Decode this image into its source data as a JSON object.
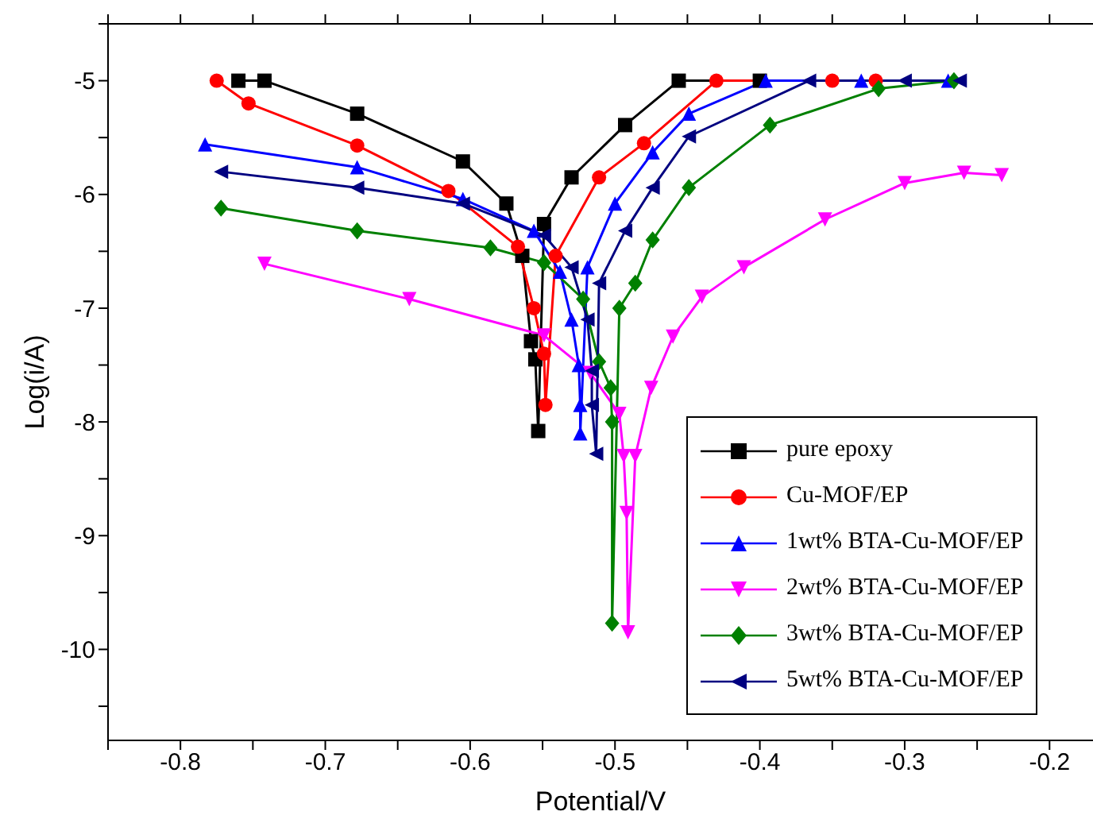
{
  "chart_data": {
    "type": "line",
    "xlabel": "Potential/V",
    "ylabel": "Log(i/A)",
    "xlim": [
      -0.85,
      -0.17
    ],
    "ylim": [
      -10.8,
      -4.5
    ],
    "xticks": [
      {
        "value": -0.85,
        "label": null
      },
      -0.8,
      {
        "value": -0.75,
        "label": null
      },
      -0.7,
      {
        "value": -0.65,
        "label": null
      },
      -0.6,
      {
        "value": -0.55,
        "label": null
      },
      -0.5,
      {
        "value": -0.45,
        "label": null
      },
      -0.4,
      {
        "value": -0.35,
        "label": null
      },
      -0.3,
      {
        "value": -0.25,
        "label": null
      },
      -0.2
    ],
    "yticks": [
      {
        "value": -4.5,
        "label": null
      },
      -5,
      {
        "value": -5.5,
        "label": null
      },
      -6,
      {
        "value": -6.5,
        "label": null
      },
      -7,
      {
        "value": -7.5,
        "label": null
      },
      -8,
      {
        "value": -8.5,
        "label": null
      },
      -9,
      {
        "value": -9.5,
        "label": null
      },
      -10,
      {
        "value": -10.5,
        "label": null
      }
    ],
    "legend": "bottom right",
    "grid": false,
    "line_style": "solid",
    "series": [
      {
        "name": "pure epoxy",
        "color": "#000000",
        "marker": "square",
        "x": [
          -0.76,
          -0.742,
          -0.678,
          -0.605,
          -0.575,
          -0.564,
          -0.558,
          -0.555,
          -0.553,
          -0.549,
          -0.53,
          -0.493,
          -0.456,
          -0.4
        ],
        "values": [
          -5.0,
          -5.0,
          -5.29,
          -5.71,
          -6.08,
          -6.54,
          -7.29,
          -7.45,
          -8.08,
          -6.26,
          -5.85,
          -5.39,
          -5.0,
          -5.0
        ]
      },
      {
        "name": "Cu-MOF/EP",
        "color": "#ff0000",
        "marker": "circle",
        "x": [
          -0.775,
          -0.753,
          -0.678,
          -0.615,
          -0.567,
          -0.556,
          -0.549,
          -0.548,
          -0.541,
          -0.511,
          -0.48,
          -0.43,
          -0.35,
          -0.32
        ],
        "values": [
          -5.0,
          -5.2,
          -5.57,
          -5.97,
          -6.46,
          -7.0,
          -7.4,
          -7.85,
          -6.54,
          -5.85,
          -5.55,
          -5.0,
          -5.0,
          -5.0
        ]
      },
      {
        "name": "1wt% BTA-Cu-MOF/EP",
        "color": "#0000ff",
        "marker": "triangle",
        "x": [
          -0.783,
          -0.678,
          -0.605,
          -0.556,
          -0.538,
          -0.53,
          -0.525,
          -0.524,
          -0.524,
          -0.519,
          -0.5,
          -0.474,
          -0.449,
          -0.396,
          -0.33,
          -0.27
        ],
        "values": [
          -5.56,
          -5.76,
          -6.04,
          -6.32,
          -6.68,
          -7.1,
          -7.5,
          -7.85,
          -8.1,
          -6.64,
          -6.08,
          -5.63,
          -5.29,
          -5.0,
          -5.0,
          -5.0
        ]
      },
      {
        "name": "2wt% BTA-Cu-MOF/EP",
        "color": "#ff00ff",
        "marker": "triangle-down",
        "x": [
          -0.742,
          -0.642,
          -0.549,
          -0.517,
          -0.497,
          -0.494,
          -0.492,
          -0.491,
          -0.486,
          -0.475,
          -0.46,
          -0.44,
          -0.411,
          -0.355,
          -0.3,
          -0.259,
          -0.233
        ],
        "values": [
          -6.61,
          -6.92,
          -7.24,
          -7.57,
          -7.93,
          -8.3,
          -8.8,
          -9.85,
          -8.3,
          -7.7,
          -7.25,
          -6.9,
          -6.64,
          -6.22,
          -5.9,
          -5.81,
          -5.83
        ]
      },
      {
        "name": "3wt% BTA-Cu-MOF/EP",
        "color": "#008000",
        "marker": "diamond",
        "x": [
          -0.772,
          -0.678,
          -0.586,
          -0.549,
          -0.522,
          -0.511,
          -0.503,
          -0.502,
          -0.502,
          -0.497,
          -0.486,
          -0.474,
          -0.449,
          -0.393,
          -0.318,
          -0.266
        ],
        "values": [
          -6.12,
          -6.32,
          -6.47,
          -6.6,
          -6.92,
          -7.47,
          -7.7,
          -8.0,
          -9.77,
          -7.0,
          -6.78,
          -6.4,
          -5.94,
          -5.39,
          -5.07,
          -5.0
        ]
      },
      {
        "name": "5wt% BTA-Cu-MOF/EP",
        "color": "#000080",
        "marker": "triangle-left",
        "x": [
          -0.772,
          -0.678,
          -0.605,
          -0.549,
          -0.53,
          -0.519,
          -0.516,
          -0.516,
          -0.513,
          -0.511,
          -0.493,
          -0.474,
          -0.449,
          -0.366,
          -0.3,
          -0.262
        ],
        "values": [
          -5.8,
          -5.94,
          -6.08,
          -6.36,
          -6.64,
          -7.1,
          -7.55,
          -7.85,
          -8.28,
          -6.78,
          -6.32,
          -5.94,
          -5.49,
          -5.0,
          -5.0,
          -5.0
        ]
      }
    ]
  }
}
